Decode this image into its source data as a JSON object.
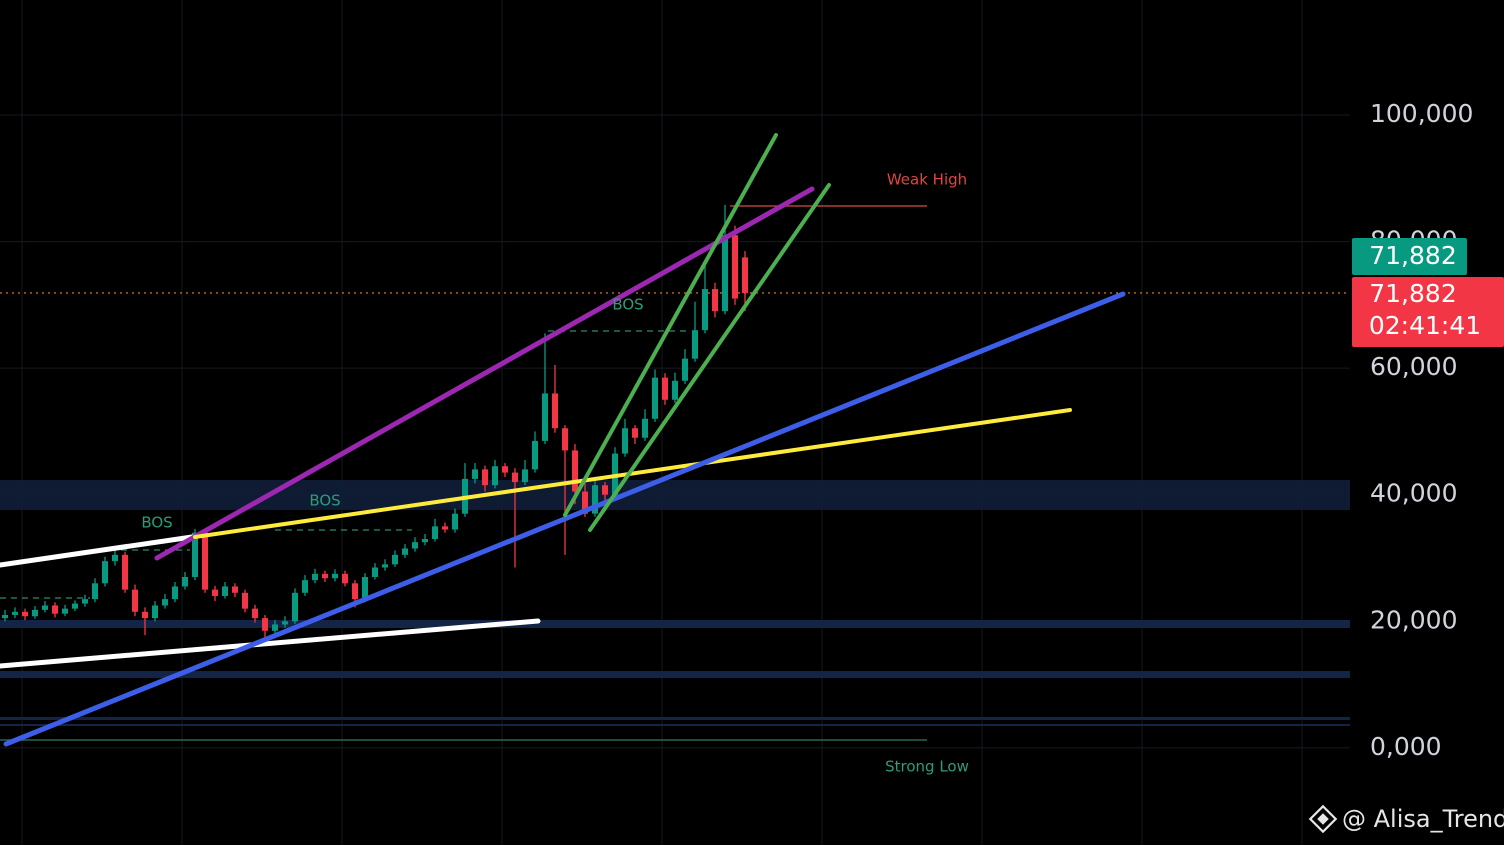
{
  "chart_data": {
    "type": "candlestick",
    "ylim": [
      -15350,
      118170
    ],
    "yticks": [
      {
        "value": 0,
        "label": "0,000"
      },
      {
        "value": 20000,
        "label": "20,000"
      },
      {
        "value": 40000,
        "label": "40,000"
      },
      {
        "value": 60000,
        "label": "60,000"
      },
      {
        "value": 80000,
        "label": "80,000"
      },
      {
        "value": 100000,
        "label": "100,000"
      }
    ],
    "grid": true,
    "up_color": "#089981",
    "down_color": "#f23645",
    "candles": [
      [
        20500,
        21800,
        20000,
        21000
      ],
      [
        21000,
        22200,
        20500,
        21500
      ],
      [
        21500,
        22000,
        20200,
        20800
      ],
      [
        20800,
        22400,
        20400,
        21800
      ],
      [
        21800,
        23200,
        21400,
        22500
      ],
      [
        22500,
        23000,
        20600,
        21200
      ],
      [
        21200,
        22600,
        20800,
        22000
      ],
      [
        22000,
        23300,
        21600,
        22800
      ],
      [
        22800,
        24200,
        22300,
        23500
      ],
      [
        23500,
        26800,
        23000,
        26000
      ],
      [
        26000,
        30200,
        25500,
        29500
      ],
      [
        29500,
        31500,
        28800,
        30500
      ],
      [
        30500,
        31000,
        24500,
        25000
      ],
      [
        25000,
        25800,
        20800,
        21500
      ],
      [
        21500,
        22200,
        17800,
        20500
      ],
      [
        20500,
        23200,
        20000,
        22500
      ],
      [
        22500,
        24300,
        22000,
        23500
      ],
      [
        23500,
        26200,
        23000,
        25500
      ],
      [
        25500,
        27800,
        25000,
        27000
      ],
      [
        27000,
        34600,
        26500,
        34000
      ],
      [
        34000,
        34500,
        24500,
        25000
      ],
      [
        25000,
        25600,
        23200,
        24000
      ],
      [
        24000,
        26200,
        23600,
        25500
      ],
      [
        25500,
        26000,
        23800,
        24500
      ],
      [
        24500,
        25000,
        21400,
        22000
      ],
      [
        22000,
        22600,
        19800,
        20500
      ],
      [
        20500,
        21000,
        16500,
        18500
      ],
      [
        18500,
        20200,
        18000,
        19500
      ],
      [
        19500,
        20800,
        19000,
        20000
      ],
      [
        20000,
        25200,
        19600,
        24500
      ],
      [
        24500,
        27300,
        24000,
        26500
      ],
      [
        26500,
        28300,
        26000,
        27500
      ],
      [
        27500,
        28000,
        26200,
        26800
      ],
      [
        26800,
        28200,
        26300,
        27500
      ],
      [
        27500,
        28000,
        25500,
        26000
      ],
      [
        26000,
        26500,
        22200,
        23500
      ],
      [
        23500,
        27600,
        23000,
        27000
      ],
      [
        27000,
        29200,
        26600,
        28500
      ],
      [
        28500,
        29800,
        28000,
        29000
      ],
      [
        29000,
        31200,
        28600,
        30500
      ],
      [
        30500,
        32200,
        30000,
        31500
      ],
      [
        31500,
        33300,
        31000,
        32500
      ],
      [
        32500,
        33800,
        32000,
        33000
      ],
      [
        33000,
        36200,
        32600,
        35000
      ],
      [
        35000,
        35600,
        34000,
        34500
      ],
      [
        34500,
        37800,
        34000,
        37000
      ],
      [
        37000,
        45000,
        36500,
        42500
      ],
      [
        42500,
        45000,
        41800,
        44000
      ],
      [
        44000,
        44600,
        40500,
        41500
      ],
      [
        41500,
        45500,
        41000,
        44500
      ],
      [
        44500,
        45000,
        42800,
        43500
      ],
      [
        43500,
        44200,
        28500,
        42000
      ],
      [
        42000,
        45500,
        41500,
        44000
      ],
      [
        44000,
        50000,
        43500,
        48500
      ],
      [
        48500,
        65500,
        48000,
        56000
      ],
      [
        56000,
        60500,
        49800,
        50500
      ],
      [
        50500,
        51000,
        30500,
        47000
      ],
      [
        47000,
        48000,
        38500,
        40500
      ],
      [
        40500,
        42500,
        36500,
        37000
      ],
      [
        37000,
        42300,
        36500,
        41500
      ],
      [
        41500,
        42000,
        38000,
        40000
      ],
      [
        40000,
        47500,
        39500,
        46500
      ],
      [
        46500,
        52000,
        46000,
        50500
      ],
      [
        50500,
        51000,
        48000,
        49000
      ],
      [
        49000,
        53500,
        48500,
        52000
      ],
      [
        52000,
        59800,
        51500,
        58500
      ],
      [
        58500,
        59200,
        54200,
        55000
      ],
      [
        55000,
        59300,
        54500,
        58000
      ],
      [
        58000,
        63000,
        57500,
        61500
      ],
      [
        61500,
        70500,
        61000,
        66000
      ],
      [
        66000,
        76500,
        65500,
        72500
      ],
      [
        72500,
        73500,
        68000,
        69000
      ],
      [
        69000,
        85800,
        68500,
        81000
      ],
      [
        81000,
        82500,
        70000,
        71000
      ],
      [
        77500,
        78500,
        69000,
        71882
      ]
    ],
    "last_price": {
      "value": 71882,
      "label": "71,882"
    },
    "countdown": "02:41:41",
    "annotations": {
      "bos": [
        "BOS",
        "BOS",
        "BOS"
      ],
      "weak_high": "Weak High",
      "strong_low": "Strong Low"
    },
    "watermark": "@ Alisa_Trend"
  }
}
